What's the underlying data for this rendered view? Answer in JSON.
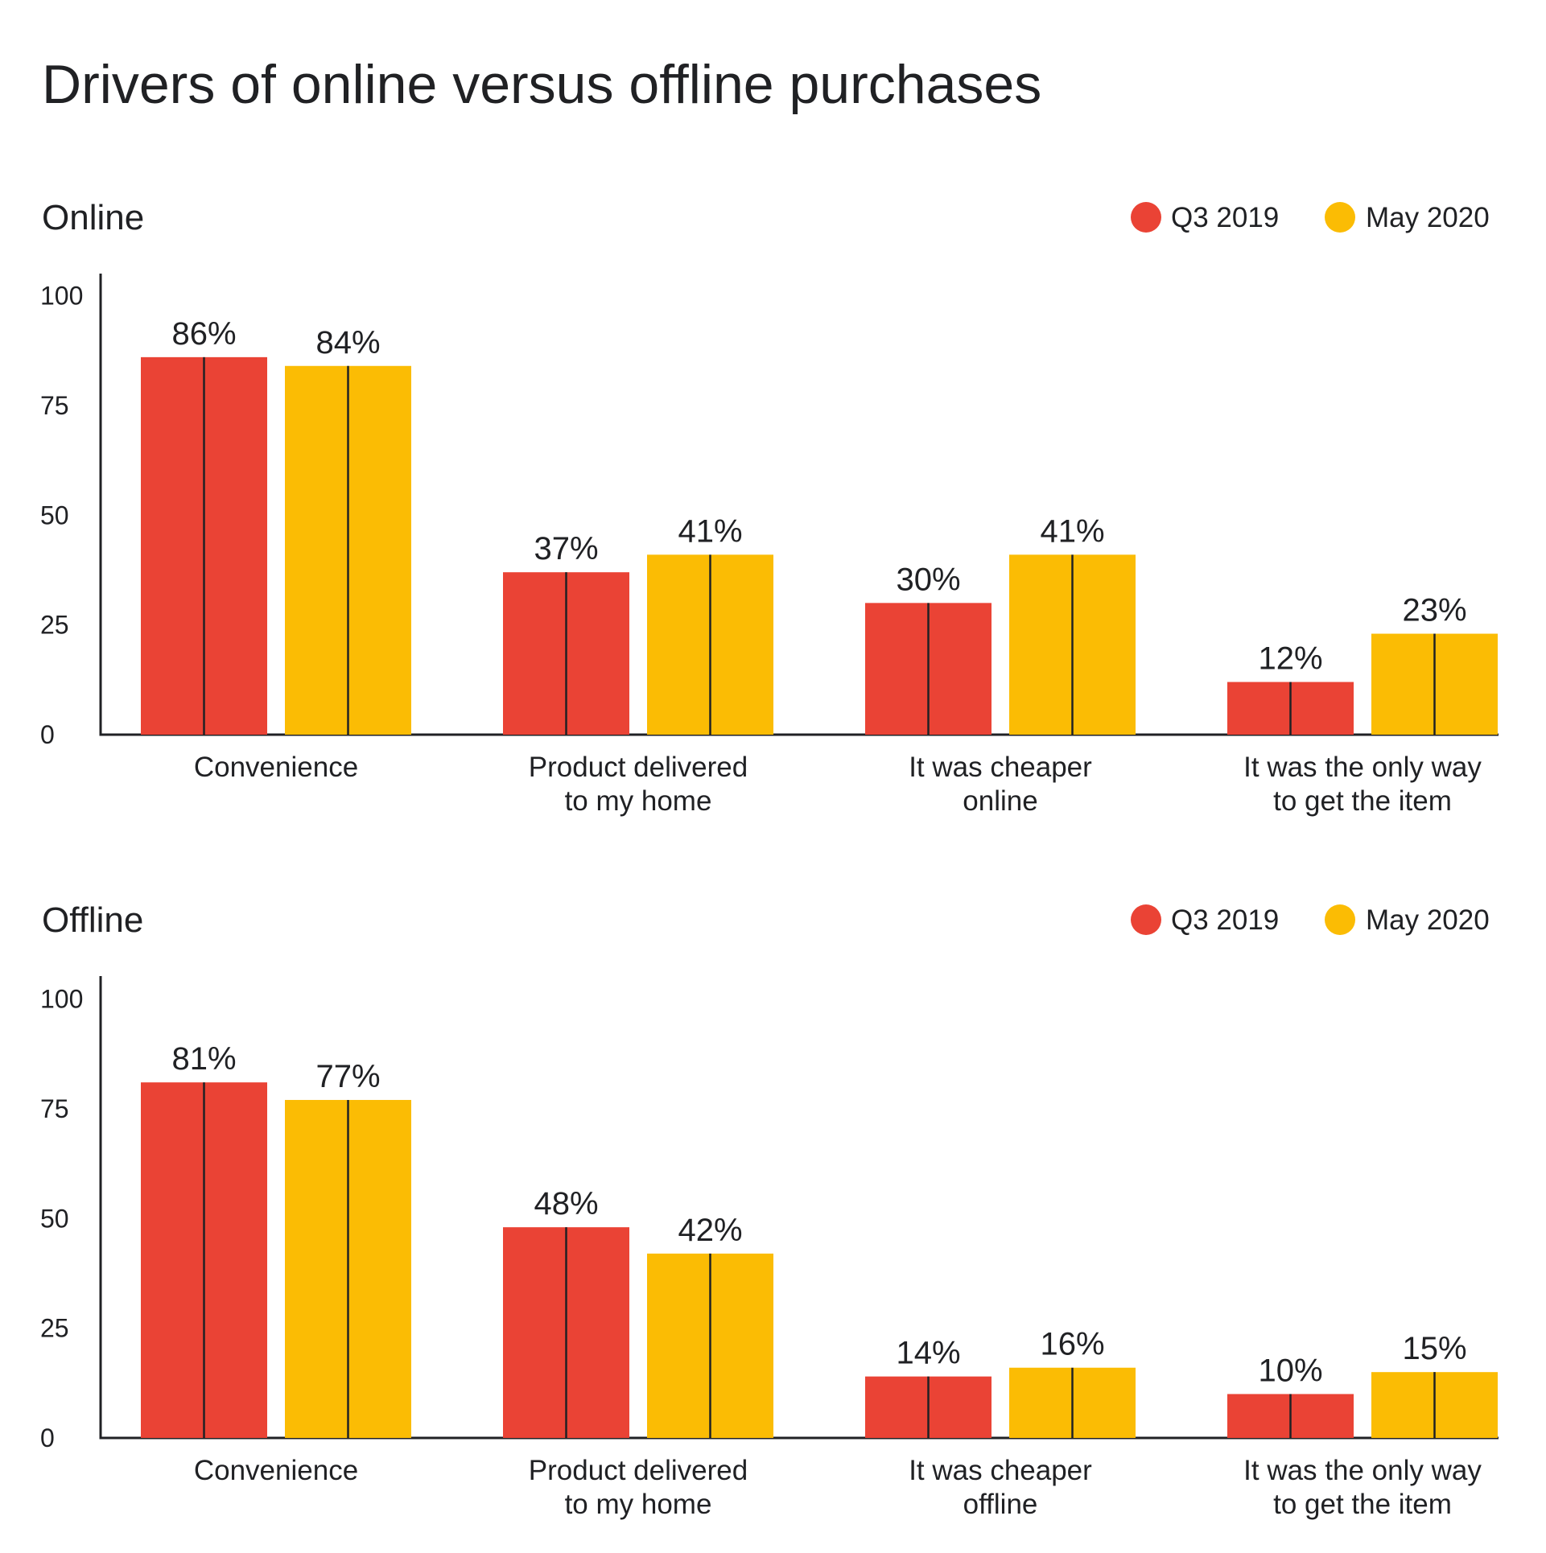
{
  "title": "Drivers of online versus offline purchases",
  "colors": {
    "q3_2019": "#EA4335",
    "may_2020": "#FBBC04",
    "axis": "#202124",
    "text": "#202124"
  },
  "chart_data": [
    {
      "type": "bar",
      "title": "Online",
      "categories": [
        [
          "Convenience"
        ],
        [
          "Product delivered",
          "to my home"
        ],
        [
          "It was cheaper",
          "online"
        ],
        [
          "It was the only way",
          "to get the item"
        ]
      ],
      "series": [
        {
          "name": "Q3 2019",
          "values": [
            86,
            37,
            30,
            12
          ],
          "labels": [
            "86%",
            "37%",
            "30%",
            "12%"
          ],
          "color": "#EA4335"
        },
        {
          "name": "May 2020",
          "values": [
            84,
            41,
            41,
            23
          ],
          "labels": [
            "84%",
            "41%",
            "41%",
            "23%"
          ],
          "color": "#FBBC04"
        }
      ],
      "yticks": [
        "0",
        "25",
        "50",
        "75",
        "100"
      ],
      "ylim": [
        0,
        105
      ],
      "legend": "top-right",
      "grid": false
    },
    {
      "type": "bar",
      "title": "Offline",
      "categories": [
        [
          "Convenience"
        ],
        [
          "Product delivered",
          "to my home"
        ],
        [
          "It was cheaper",
          "offline"
        ],
        [
          "It was the only way",
          "to get the item"
        ]
      ],
      "series": [
        {
          "name": "Q3 2019",
          "values": [
            81,
            48,
            14,
            10
          ],
          "labels": [
            "81%",
            "48%",
            "14%",
            "10%"
          ],
          "color": "#EA4335"
        },
        {
          "name": "May 2020",
          "values": [
            77,
            42,
            16,
            15
          ],
          "labels": [
            "77%",
            "42%",
            "16%",
            "15%"
          ],
          "color": "#FBBC04"
        }
      ],
      "yticks": [
        "0",
        "25",
        "50",
        "75",
        "100"
      ],
      "ylim": [
        0,
        105
      ],
      "legend": "top-right",
      "grid": false
    }
  ]
}
